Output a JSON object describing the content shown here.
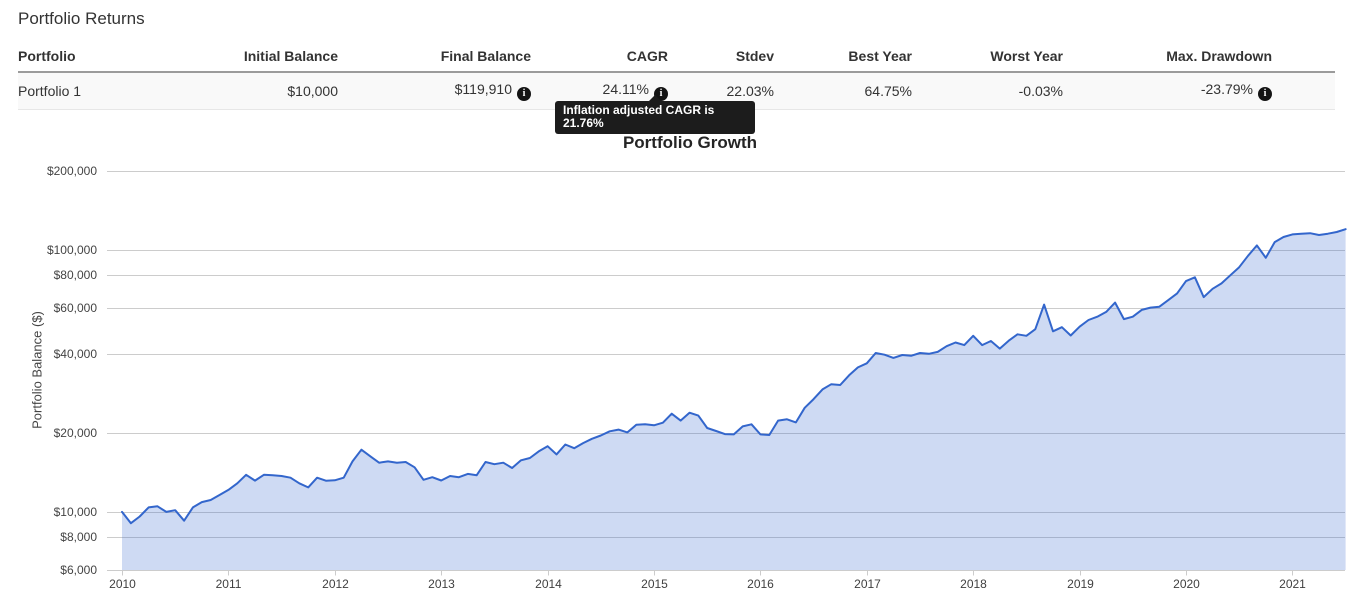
{
  "page": {
    "title": "Portfolio Returns"
  },
  "table": {
    "columns": [
      {
        "label": "Portfolio"
      },
      {
        "label": "Initial Balance"
      },
      {
        "label": "Final Balance"
      },
      {
        "label": "CAGR"
      },
      {
        "label": "Stdev"
      },
      {
        "label": "Best Year"
      },
      {
        "label": "Worst Year"
      },
      {
        "label": "Max. Drawdown"
      }
    ],
    "row": {
      "name": "Portfolio 1",
      "initial_balance": "$10,000",
      "final_balance": "$119,910",
      "cagr": "24.11%",
      "stdev": "22.03%",
      "best_year": "64.75%",
      "worst_year": "-0.03%",
      "max_drawdown": "-23.79%"
    }
  },
  "icons": {
    "info_glyph": "i"
  },
  "tooltip": {
    "text": "Inflation adjusted CAGR is 21.76%"
  },
  "chart_data": {
    "type": "area",
    "title": "Portfolio Growth",
    "ylabel": "Portfolio Balance ($)",
    "series_name": "Portfolio 1",
    "x_unit": "month",
    "x_start": "2010-01",
    "x_end": "2021-07",
    "x_tick_labels": [
      "2010",
      "2011",
      "2012",
      "2013",
      "2014",
      "2015",
      "2016",
      "2017",
      "2018",
      "2019",
      "2020",
      "2021"
    ],
    "y_scale": "log",
    "ylim": [
      6000,
      200000
    ],
    "grid": true,
    "legend": "none",
    "y_ticks": [
      {
        "value": 200000,
        "label": "$200,000"
      },
      {
        "value": 100000,
        "label": "$100,000"
      },
      {
        "value": 80000,
        "label": "$80,000"
      },
      {
        "value": 60000,
        "label": "$60,000"
      },
      {
        "value": 40000,
        "label": "$40,000"
      },
      {
        "value": 20000,
        "label": "$20,000"
      },
      {
        "value": 10000,
        "label": "$10,000"
      },
      {
        "value": 8000,
        "label": "$8,000"
      },
      {
        "value": 6000,
        "label": "$6,000"
      }
    ],
    "line_color": "#3366cc",
    "fill_color": "rgba(51,102,204,0.24)",
    "grid_color": "#cccccc",
    "values": [
      10000,
      9050,
      9600,
      10400,
      10500,
      10000,
      10150,
      9250,
      10400,
      10900,
      11100,
      11600,
      12130,
      12855,
      13850,
      13160,
      13850,
      13800,
      13700,
      13500,
      12855,
      12400,
      13500,
      13150,
      13200,
      13500,
      15580,
      17270,
      16300,
      15400,
      15580,
      15400,
      15500,
      14800,
      13260,
      13560,
      13180,
      13700,
      13560,
      13960,
      13800,
      15500,
      15200,
      15400,
      14700,
      15730,
      16050,
      17010,
      17810,
      16570,
      18080,
      17500,
      18300,
      19000,
      19560,
      20300,
      20600,
      20100,
      21500,
      21600,
      21400,
      21900,
      23700,
      22300,
      23900,
      23300,
      20900,
      20350,
      19800,
      19750,
      21200,
      21594,
      19750,
      19650,
      22300,
      22550,
      21950,
      24950,
      26950,
      29350,
      30700,
      30500,
      33200,
      35600,
      36900,
      40400,
      39800,
      38700,
      39700,
      39400,
      40400,
      40100,
      40800,
      42900,
      44300,
      43300,
      47000,
      43300,
      44900,
      42000,
      45000,
      47600,
      47000,
      49800,
      61800,
      48900,
      50700,
      47100,
      50900,
      54000,
      55600,
      58000,
      62900,
      54400,
      55600,
      59000,
      60200,
      60700,
      64300,
      68200,
      76000,
      78600,
      66000,
      71000,
      74500,
      80000,
      85900,
      95000,
      104000,
      93300,
      107100,
      112000,
      114600,
      115300,
      115800,
      114000,
      115300,
      117000,
      119910
    ]
  }
}
